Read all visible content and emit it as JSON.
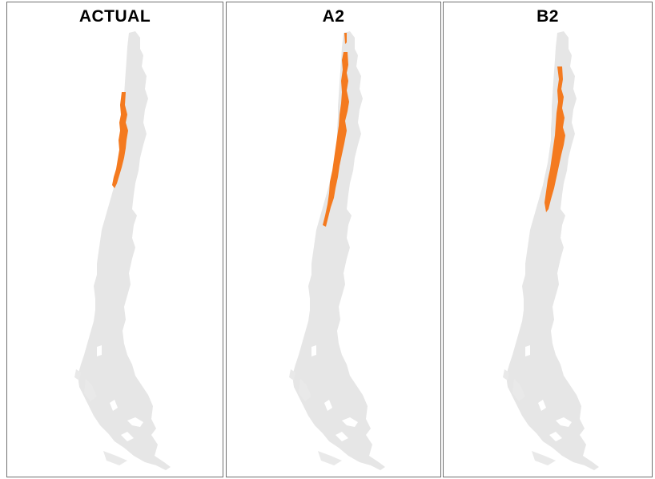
{
  "panels": [
    {
      "title": "ACTUAL",
      "key": "actual"
    },
    {
      "title": "A2",
      "key": "a2"
    },
    {
      "title": "B2",
      "key": "b2"
    }
  ],
  "colors": {
    "land": "#e6e6e6",
    "distribution": "#f47a1f",
    "border": "#707070"
  }
}
